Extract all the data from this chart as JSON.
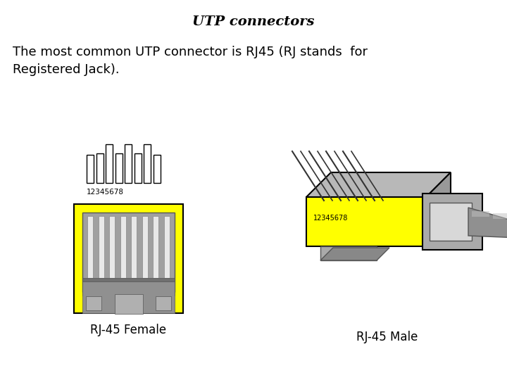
{
  "title": "UTP connectors",
  "body_text_line1": "The most common UTP connector is RJ45 (RJ stands  for",
  "body_text_line2": "Registered Jack).",
  "label_female": "RJ-45 Female",
  "label_male": "RJ-45 Male",
  "pin_numbers": "12345678",
  "background_color": "#ffffff",
  "yellow_color": "#ffff00",
  "gray_color": "#a0a0a0",
  "gray_dark": "#808080",
  "gray_light": "#c8c8c8",
  "gray_medium": "#909090",
  "outline_color": "#000000",
  "white_color": "#ffffff",
  "title_fontsize": 14,
  "body_fontsize": 13,
  "label_fontsize": 12
}
